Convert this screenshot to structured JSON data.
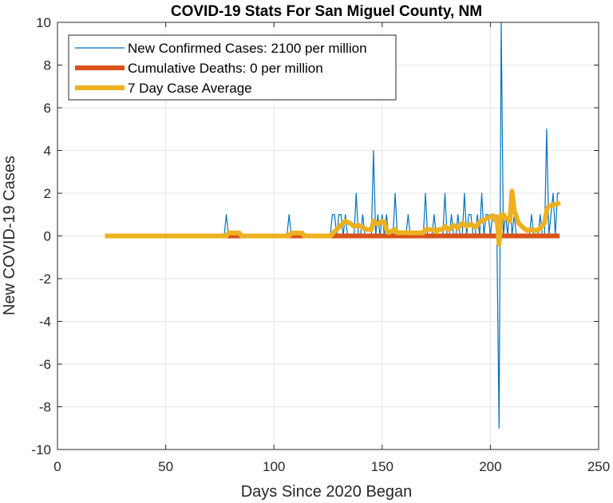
{
  "chart_data": {
    "type": "line",
    "title": "COVID-19 Stats For San Miguel County, NM",
    "xlabel": "Days Since 2020 Began",
    "ylabel": "New COVID-19 Cases",
    "xlim": [
      0,
      250
    ],
    "ylim": [
      -10,
      10
    ],
    "xticks": [
      0,
      50,
      100,
      150,
      200,
      250
    ],
    "yticks": [
      -10,
      -8,
      -6,
      -4,
      -2,
      0,
      2,
      4,
      6,
      8,
      10
    ],
    "grid": true,
    "legend_position": "top-left",
    "colors": {
      "cases": "#0072BD",
      "deaths": "#D95319",
      "avg": "#EDB120",
      "grid": "#e6e6e6",
      "axis": "#262626"
    },
    "series": [
      {
        "name": "New Confirmed Cases: 2100 per million",
        "points": [
          [
            22,
            0
          ],
          [
            77,
            0
          ],
          [
            78,
            1
          ],
          [
            79,
            0
          ],
          [
            106,
            0
          ],
          [
            107,
            1
          ],
          [
            108,
            0
          ],
          [
            126,
            0
          ],
          [
            127,
            1
          ],
          [
            128,
            1
          ],
          [
            129,
            0
          ],
          [
            130,
            1
          ],
          [
            131,
            1
          ],
          [
            132,
            0
          ],
          [
            133,
            1
          ],
          [
            134,
            0
          ],
          [
            135,
            0
          ],
          [
            136,
            0
          ],
          [
            137,
            0
          ],
          [
            138,
            2
          ],
          [
            139,
            0
          ],
          [
            140,
            0
          ],
          [
            141,
            1
          ],
          [
            142,
            0
          ],
          [
            143,
            0
          ],
          [
            144,
            0
          ],
          [
            145,
            0
          ],
          [
            146,
            4
          ],
          [
            147,
            0
          ],
          [
            148,
            1
          ],
          [
            149,
            0
          ],
          [
            150,
            1
          ],
          [
            151,
            0
          ],
          [
            152,
            1
          ],
          [
            153,
            0
          ],
          [
            154,
            0
          ],
          [
            155,
            0
          ],
          [
            156,
            2
          ],
          [
            157,
            0
          ],
          [
            158,
            0
          ],
          [
            159,
            0
          ],
          [
            160,
            0
          ],
          [
            161,
            0
          ],
          [
            162,
            1
          ],
          [
            163,
            0
          ],
          [
            164,
            0
          ],
          [
            165,
            0
          ],
          [
            166,
            0
          ],
          [
            167,
            0
          ],
          [
            168,
            0
          ],
          [
            169,
            0
          ],
          [
            170,
            2
          ],
          [
            171,
            0
          ],
          [
            172,
            0
          ],
          [
            173,
            0
          ],
          [
            174,
            1
          ],
          [
            175,
            0
          ],
          [
            176,
            0
          ],
          [
            177,
            0
          ],
          [
            178,
            0
          ],
          [
            179,
            2
          ],
          [
            180,
            0
          ],
          [
            181,
            0
          ],
          [
            182,
            1
          ],
          [
            183,
            0
          ],
          [
            184,
            0
          ],
          [
            185,
            1
          ],
          [
            186,
            0
          ],
          [
            187,
            0
          ],
          [
            188,
            2
          ],
          [
            189,
            0
          ],
          [
            190,
            1
          ],
          [
            191,
            1
          ],
          [
            192,
            0
          ],
          [
            193,
            0
          ],
          [
            194,
            1
          ],
          [
            195,
            0
          ],
          [
            196,
            2
          ],
          [
            197,
            0
          ],
          [
            198,
            1
          ],
          [
            199,
            1
          ],
          [
            200,
            0
          ],
          [
            201,
            1
          ],
          [
            202,
            1
          ],
          [
            203,
            0
          ],
          [
            204,
            -9
          ],
          [
            205,
            10
          ],
          [
            206,
            0
          ],
          [
            207,
            1
          ],
          [
            208,
            0
          ],
          [
            209,
            2
          ],
          [
            210,
            0
          ],
          [
            211,
            1
          ],
          [
            212,
            0
          ],
          [
            213,
            0
          ],
          [
            214,
            0
          ],
          [
            215,
            0
          ],
          [
            216,
            0
          ],
          [
            217,
            0
          ],
          [
            218,
            0
          ],
          [
            219,
            1
          ],
          [
            220,
            0
          ],
          [
            221,
            0
          ],
          [
            222,
            0
          ],
          [
            223,
            1
          ],
          [
            224,
            0
          ],
          [
            225,
            0
          ],
          [
            226,
            5
          ],
          [
            227,
            0
          ],
          [
            228,
            1
          ],
          [
            229,
            2
          ],
          [
            230,
            0
          ],
          [
            231,
            2
          ],
          [
            232,
            2
          ]
        ]
      },
      {
        "name": "Cumulative Deaths: 0 per million",
        "points": [
          [
            22,
            0
          ],
          [
            232,
            0
          ]
        ]
      },
      {
        "name": "7 Day Case Average",
        "points": [
          [
            22,
            0
          ],
          [
            78,
            0
          ],
          [
            79,
            0.14
          ],
          [
            84,
            0.14
          ],
          [
            85,
            0
          ],
          [
            107,
            0
          ],
          [
            108,
            0.14
          ],
          [
            113,
            0.14
          ],
          [
            114,
            0
          ],
          [
            126,
            0
          ],
          [
            128,
            0.2
          ],
          [
            130,
            0.4
          ],
          [
            132,
            0.6
          ],
          [
            133,
            0.7
          ],
          [
            135,
            0.6
          ],
          [
            137,
            0.45
          ],
          [
            139,
            0.5
          ],
          [
            141,
            0.4
          ],
          [
            143,
            0.3
          ],
          [
            145,
            0.3
          ],
          [
            146,
            0.7
          ],
          [
            147,
            0.6
          ],
          [
            148,
            0.55
          ],
          [
            150,
            0.7
          ],
          [
            151,
            0.65
          ],
          [
            152,
            0.3
          ],
          [
            153,
            0.15
          ],
          [
            156,
            0.3
          ],
          [
            157,
            0.15
          ],
          [
            160,
            0.15
          ],
          [
            163,
            0.15
          ],
          [
            166,
            0.14
          ],
          [
            169,
            0.15
          ],
          [
            170,
            0.3
          ],
          [
            173,
            0.3
          ],
          [
            175,
            0.2
          ],
          [
            176,
            0.3
          ],
          [
            178,
            0.3
          ],
          [
            179,
            0.45
          ],
          [
            181,
            0.3
          ],
          [
            183,
            0.5
          ],
          [
            185,
            0.35
          ],
          [
            187,
            0.6
          ],
          [
            189,
            0.45
          ],
          [
            191,
            0.55
          ],
          [
            193,
            0.4
          ],
          [
            195,
            0.65
          ],
          [
            197,
            0.75
          ],
          [
            199,
            0.85
          ],
          [
            201,
            0.95
          ],
          [
            202,
            0.75
          ],
          [
            203,
            0.9
          ],
          [
            204,
            -0.4
          ],
          [
            205,
            1
          ],
          [
            206,
            1
          ],
          [
            207,
            0.85
          ],
          [
            209,
            0.7
          ],
          [
            210,
            2.1
          ],
          [
            211,
            1.2
          ],
          [
            213,
            0.6
          ],
          [
            215,
            0.4
          ],
          [
            217,
            0.25
          ],
          [
            219,
            0.3
          ],
          [
            221,
            0.25
          ],
          [
            223,
            0.35
          ],
          [
            225,
            0.6
          ],
          [
            226,
            1.2
          ],
          [
            227,
            1.4
          ],
          [
            229,
            1.45
          ],
          [
            231,
            1.5
          ],
          [
            232,
            1.6
          ]
        ]
      }
    ]
  }
}
